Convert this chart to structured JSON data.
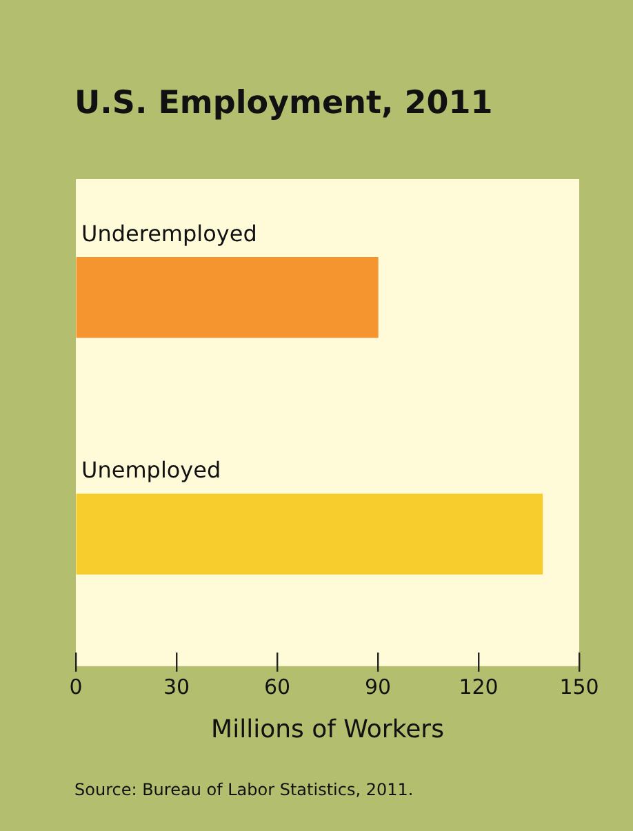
{
  "chart_data": {
    "type": "bar",
    "orientation": "horizontal",
    "title": "U.S. Employment, 2011",
    "xlabel": "Millions of Workers",
    "categories": [
      "Underemployed",
      "Unemployed"
    ],
    "values": [
      90,
      139
    ],
    "colors": [
      "#f5952f",
      "#f6cd2c"
    ],
    "xlim": [
      0,
      150
    ],
    "xticks": [
      0,
      30,
      60,
      90,
      120,
      150
    ],
    "grid": false,
    "legend": false,
    "annotations": [
      "Source: Bureau of Labor Statistics, 2011."
    ]
  }
}
